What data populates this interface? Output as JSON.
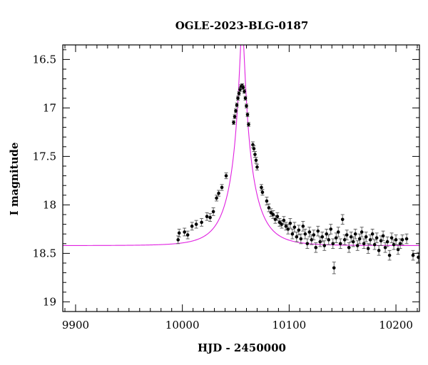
{
  "chart_data": {
    "type": "scatter",
    "title": "OGLE-2023-BLG-0187",
    "xlabel": "HJD - 2450000",
    "ylabel": "I magnitude",
    "xlim": [
      9888,
      10222
    ],
    "ylim": [
      19.1,
      16.35
    ],
    "y_inverted": true,
    "x_ticks": [
      9900,
      10000,
      10100,
      10200
    ],
    "x_tick_labels": [
      "9900",
      "10000",
      "10100",
      "10200"
    ],
    "y_ticks": [
      16.5,
      17,
      17.5,
      18,
      18.5,
      19
    ],
    "y_tick_labels": [
      "16.5",
      "17",
      "17.5",
      "18",
      "18.5",
      "19"
    ],
    "grid": false,
    "legend": "none",
    "colors": {
      "model": "#e020e0",
      "points": "#000000"
    },
    "model": {
      "name": "",
      "t0": 10056,
      "u0": 0.09,
      "tE": 24,
      "fs": 0.68,
      "I_base": 18.42
    },
    "series": [
      {
        "name": "",
        "points": [
          [
            9996,
            18.36,
            0.04
          ],
          [
            9997,
            18.29,
            0.04
          ],
          [
            10002,
            18.28,
            0.04
          ],
          [
            10005,
            18.31,
            0.04
          ],
          [
            10009,
            18.22,
            0.04
          ],
          [
            10013,
            18.2,
            0.04
          ],
          [
            10018,
            18.18,
            0.04
          ],
          [
            10023,
            18.12,
            0.04
          ],
          [
            10026,
            18.13,
            0.04
          ],
          [
            10029,
            18.07,
            0.04
          ],
          [
            10032,
            17.93,
            0.03
          ],
          [
            10034,
            17.88,
            0.03
          ],
          [
            10037,
            17.82,
            0.03
          ],
          [
            10041,
            17.7,
            0.03
          ],
          [
            10048,
            17.15,
            0.02
          ],
          [
            10049,
            17.09,
            0.02
          ],
          [
            10050,
            17.03,
            0.02
          ],
          [
            10051,
            16.97,
            0.02
          ],
          [
            10052,
            16.9,
            0.02
          ],
          [
            10053,
            16.85,
            0.02
          ],
          [
            10054,
            16.81,
            0.02
          ],
          [
            10055,
            16.78,
            0.02
          ],
          [
            10056,
            16.77,
            0.02
          ],
          [
            10057,
            16.79,
            0.02
          ],
          [
            10058,
            16.83,
            0.02
          ],
          [
            10059,
            16.9,
            0.02
          ],
          [
            10060,
            16.98,
            0.02
          ],
          [
            10061,
            17.07,
            0.02
          ],
          [
            10062,
            17.17,
            0.02
          ],
          [
            10066,
            17.38,
            0.03
          ],
          [
            10067,
            17.42,
            0.03
          ],
          [
            10068,
            17.48,
            0.03
          ],
          [
            10069,
            17.54,
            0.03
          ],
          [
            10070,
            17.61,
            0.03
          ],
          [
            10074,
            17.82,
            0.03
          ],
          [
            10075,
            17.87,
            0.03
          ],
          [
            10079,
            17.96,
            0.04
          ],
          [
            10081,
            18.03,
            0.04
          ],
          [
            10083,
            18.08,
            0.04
          ],
          [
            10085,
            18.1,
            0.04
          ],
          [
            10087,
            18.15,
            0.04
          ],
          [
            10089,
            18.12,
            0.04
          ],
          [
            10091,
            18.18,
            0.04
          ],
          [
            10093,
            18.2,
            0.04
          ],
          [
            10095,
            18.16,
            0.04
          ],
          [
            10097,
            18.22,
            0.04
          ],
          [
            10099,
            18.25,
            0.05
          ],
          [
            10101,
            18.19,
            0.05
          ],
          [
            10103,
            18.3,
            0.05
          ],
          [
            10105,
            18.23,
            0.05
          ],
          [
            10107,
            18.33,
            0.05
          ],
          [
            10109,
            18.26,
            0.05
          ],
          [
            10111,
            18.35,
            0.05
          ],
          [
            10113,
            18.22,
            0.05
          ],
          [
            10115,
            18.3,
            0.05
          ],
          [
            10117,
            18.4,
            0.05
          ],
          [
            10119,
            18.28,
            0.05
          ],
          [
            10121,
            18.36,
            0.05
          ],
          [
            10123,
            18.31,
            0.05
          ],
          [
            10125,
            18.44,
            0.05
          ],
          [
            10127,
            18.27,
            0.05
          ],
          [
            10129,
            18.38,
            0.05
          ],
          [
            10131,
            18.33,
            0.05
          ],
          [
            10133,
            18.42,
            0.05
          ],
          [
            10135,
            18.3,
            0.05
          ],
          [
            10137,
            18.36,
            0.05
          ],
          [
            10139,
            18.25,
            0.05
          ],
          [
            10141,
            18.4,
            0.05
          ],
          [
            10142,
            18.65,
            0.06
          ],
          [
            10144,
            18.34,
            0.05
          ],
          [
            10146,
            18.28,
            0.05
          ],
          [
            10148,
            18.4,
            0.05
          ],
          [
            10150,
            18.15,
            0.05
          ],
          [
            10152,
            18.36,
            0.05
          ],
          [
            10154,
            18.31,
            0.05
          ],
          [
            10156,
            18.44,
            0.05
          ],
          [
            10158,
            18.33,
            0.05
          ],
          [
            10160,
            18.38,
            0.05
          ],
          [
            10162,
            18.3,
            0.05
          ],
          [
            10164,
            18.42,
            0.05
          ],
          [
            10166,
            18.35,
            0.05
          ],
          [
            10168,
            18.28,
            0.05
          ],
          [
            10170,
            18.4,
            0.05
          ],
          [
            10172,
            18.33,
            0.05
          ],
          [
            10174,
            18.45,
            0.05
          ],
          [
            10176,
            18.36,
            0.05
          ],
          [
            10178,
            18.3,
            0.05
          ],
          [
            10180,
            18.41,
            0.05
          ],
          [
            10182,
            18.34,
            0.05
          ],
          [
            10184,
            18.47,
            0.05
          ],
          [
            10186,
            18.37,
            0.05
          ],
          [
            10188,
            18.32,
            0.05
          ],
          [
            10190,
            18.44,
            0.05
          ],
          [
            10192,
            18.38,
            0.05
          ],
          [
            10194,
            18.52,
            0.05
          ],
          [
            10196,
            18.34,
            0.05
          ],
          [
            10198,
            18.41,
            0.05
          ],
          [
            10200,
            18.36,
            0.05
          ],
          [
            10202,
            18.46,
            0.05
          ],
          [
            10204,
            18.4,
            0.05
          ],
          [
            10206,
            18.36,
            0.05
          ],
          [
            10210,
            18.35,
            0.05
          ],
          [
            10216,
            18.52,
            0.05
          ],
          [
            10221,
            18.54,
            0.05
          ]
        ]
      }
    ]
  }
}
